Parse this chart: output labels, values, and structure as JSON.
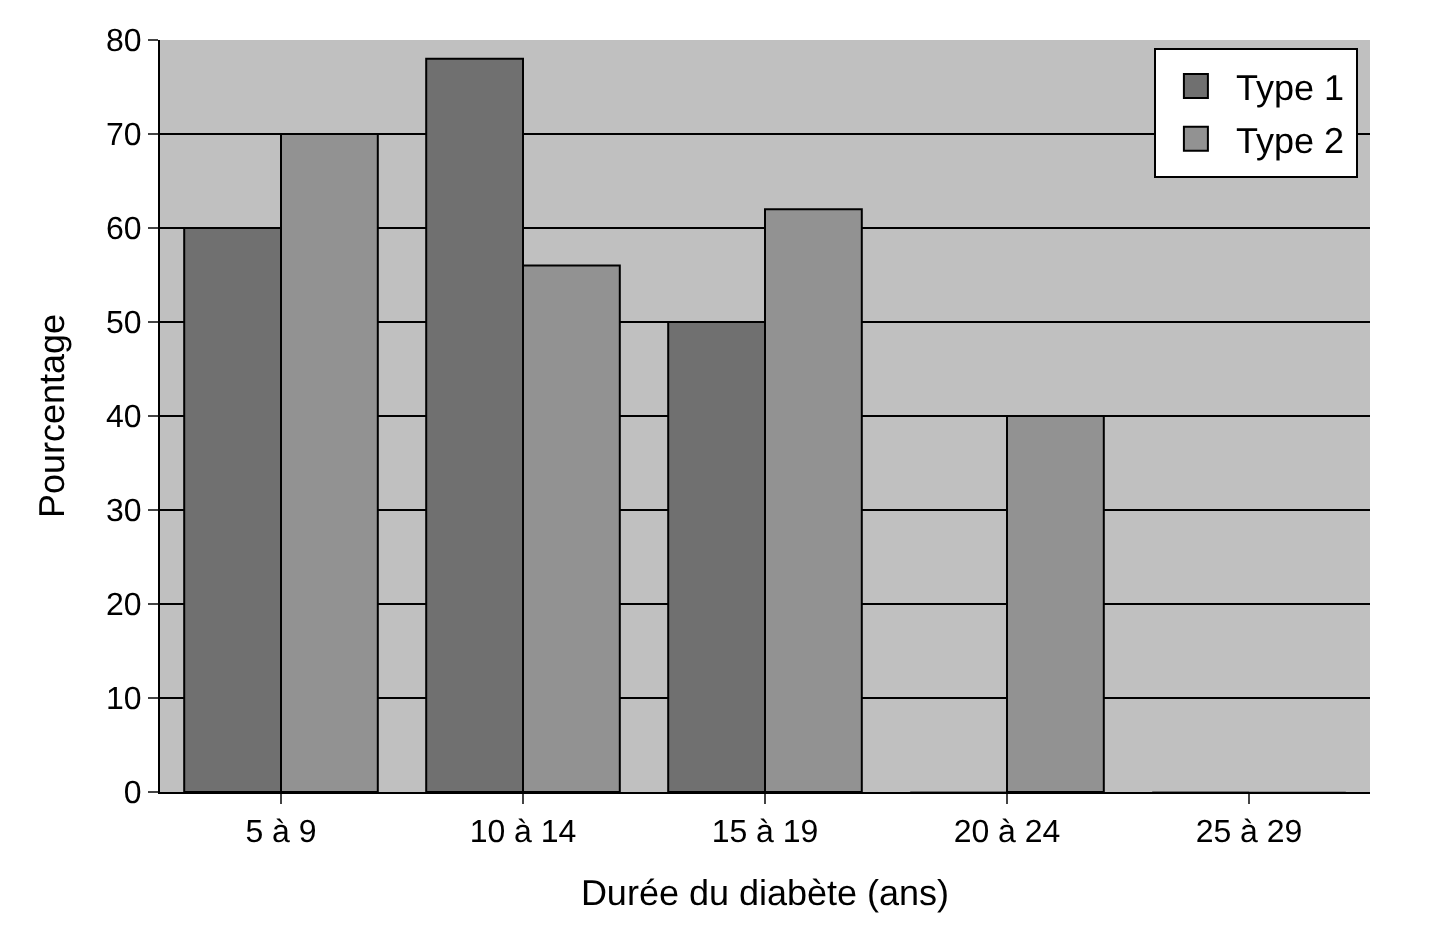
{
  "chart_data": {
    "type": "bar",
    "xlabel": "Durée du diabète (ans)",
    "ylabel": "Pourcentage",
    "categories": [
      "5 à 9",
      "10 à 14",
      "15 à 19",
      "20 à 24",
      "25 à 29"
    ],
    "series": [
      {
        "name": "Type 1",
        "color": "#707070",
        "values": [
          60,
          78,
          50,
          0,
          0
        ]
      },
      {
        "name": "Type 2",
        "color": "#929292",
        "values": [
          70,
          56,
          62,
          40,
          0
        ]
      }
    ],
    "ylim": [
      0,
      80
    ],
    "yticks": [
      0,
      10,
      20,
      30,
      40,
      50,
      60,
      70,
      80
    ],
    "grid": "y",
    "legend": "top right"
  }
}
